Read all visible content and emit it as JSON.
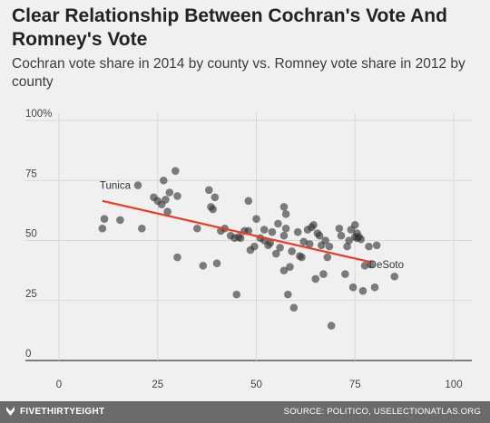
{
  "title": "Clear Relationship Between Cochran's Vote And Romney's Vote",
  "subtitle": "Cochran vote share in 2014 by county vs. Romney vote share in 2012 by county",
  "footer": {
    "brand": "FIVETHIRTYEIGHT",
    "source": "SOURCE: POLITICO, USELECTIONATLAS.ORG"
  },
  "colors": {
    "background": "#f0f0f0",
    "points": "#333333",
    "trend_line": "#ef3a24",
    "footer": "#6b6b6b"
  },
  "chart_data": {
    "type": "scatter",
    "title": "Clear Relationship Between Cochran's Vote And Romney's Vote",
    "subtitle": "Cochran vote share in 2014 by county vs. Romney vote share in 2012 by county",
    "xlabel": "",
    "ylabel": "",
    "xlim": [
      0,
      100
    ],
    "ylim": [
      0,
      100
    ],
    "x_ticks": [
      "0",
      "25",
      "50",
      "75",
      "100"
    ],
    "y_ticks": [
      "0",
      "25",
      "50",
      "75",
      "100%"
    ],
    "grid": true,
    "trend_line": {
      "x": [
        11,
        79
      ],
      "y": [
        66.5,
        41
      ]
    },
    "annotations": [
      {
        "text": "Tunica",
        "x": 20,
        "y": 73
      },
      {
        "text": "DeSoto",
        "x": 79,
        "y": 40
      }
    ],
    "points": [
      [
        20,
        73
      ],
      [
        11,
        55
      ],
      [
        11.5,
        59
      ],
      [
        15.5,
        58.5
      ],
      [
        21,
        55
      ],
      [
        24,
        68
      ],
      [
        25,
        66.5
      ],
      [
        26,
        65
      ],
      [
        26.5,
        75
      ],
      [
        27,
        67
      ],
      [
        27.5,
        62
      ],
      [
        28,
        70
      ],
      [
        29.5,
        79
      ],
      [
        30,
        68.5
      ],
      [
        30,
        43
      ],
      [
        35,
        55
      ],
      [
        36.5,
        39.5
      ],
      [
        38,
        71
      ],
      [
        38.5,
        64
      ],
      [
        39,
        63
      ],
      [
        39.5,
        68
      ],
      [
        40,
        40.5
      ],
      [
        41,
        54
      ],
      [
        42,
        55
      ],
      [
        43.5,
        52
      ],
      [
        44.5,
        51
      ],
      [
        45,
        27.5
      ],
      [
        45.5,
        51.5
      ],
      [
        46,
        51
      ],
      [
        47,
        54
      ],
      [
        48,
        54
      ],
      [
        48,
        66.5
      ],
      [
        48.5,
        46
      ],
      [
        49.5,
        47.5
      ],
      [
        50,
        59
      ],
      [
        51,
        51
      ],
      [
        52,
        50
      ],
      [
        52,
        54.5
      ],
      [
        53,
        48
      ],
      [
        53.5,
        49
      ],
      [
        54,
        53.5
      ],
      [
        55,
        44.5
      ],
      [
        55.5,
        57
      ],
      [
        56,
        47
      ],
      [
        57,
        64
      ],
      [
        57,
        37.5
      ],
      [
        57,
        52
      ],
      [
        57.5,
        55
      ],
      [
        57.5,
        61
      ],
      [
        58,
        27.5
      ],
      [
        58.5,
        39
      ],
      [
        59,
        45.5
      ],
      [
        59.5,
        22
      ],
      [
        60.5,
        53.5
      ],
      [
        61,
        43.5
      ],
      [
        61.5,
        43
      ],
      [
        62,
        49.5
      ],
      [
        63,
        54.5
      ],
      [
        63.5,
        48.5
      ],
      [
        64,
        55.5
      ],
      [
        64.5,
        56.5
      ],
      [
        65,
        34
      ],
      [
        65.5,
        53
      ],
      [
        66,
        52
      ],
      [
        66.5,
        48
      ],
      [
        67,
        36
      ],
      [
        67.5,
        50
      ],
      [
        68,
        43
      ],
      [
        68.5,
        47.5
      ],
      [
        69,
        14.5
      ],
      [
        71,
        55
      ],
      [
        71.5,
        52
      ],
      [
        72.5,
        36
      ],
      [
        73,
        47.5
      ],
      [
        73.5,
        50
      ],
      [
        74,
        54.5
      ],
      [
        74.5,
        30.5
      ],
      [
        75,
        56.5
      ],
      [
        75,
        51.5
      ],
      [
        75.5,
        53
      ],
      [
        75.5,
        51
      ],
      [
        76,
        51.5
      ],
      [
        76.5,
        50.5
      ],
      [
        77,
        29
      ],
      [
        77.5,
        39.5
      ],
      [
        78.5,
        47.5
      ],
      [
        79,
        40
      ],
      [
        80,
        30.5
      ],
      [
        80.5,
        48
      ],
      [
        85,
        35
      ]
    ]
  }
}
